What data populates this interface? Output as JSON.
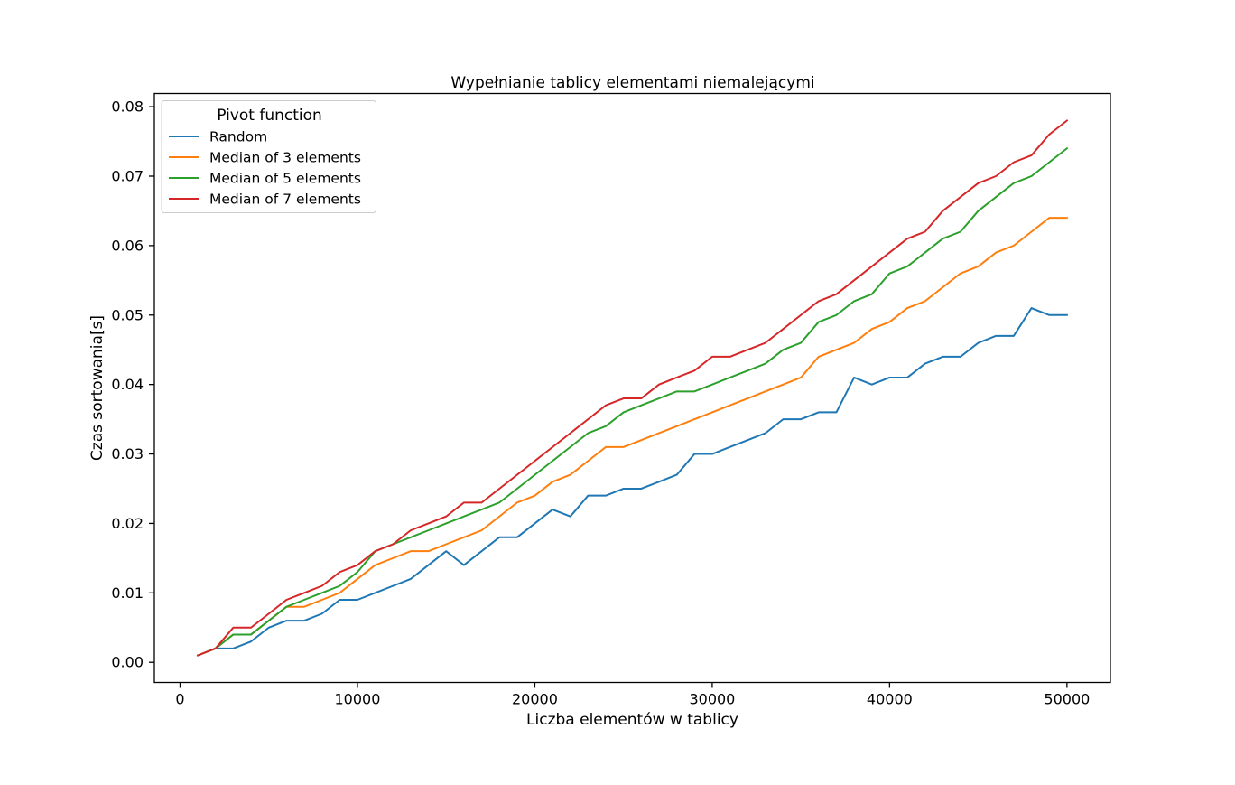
{
  "chart_data": {
    "type": "line",
    "title": "Wypełnianie tablicy elementami niemalejącymi",
    "xlabel": "Liczba elementów w tablicy",
    "ylabel": "Czas sortowania[s]",
    "xlim": [
      -1450,
      52450
    ],
    "ylim": [
      -0.0029,
      0.0819
    ],
    "xticks": [
      0,
      10000,
      20000,
      30000,
      40000,
      50000
    ],
    "xtick_labels": [
      "0",
      "10000",
      "20000",
      "30000",
      "40000",
      "50000"
    ],
    "yticks": [
      0.0,
      0.01,
      0.02,
      0.03,
      0.04,
      0.05,
      0.06,
      0.07,
      0.08
    ],
    "ytick_labels": [
      "0.00",
      "0.01",
      "0.02",
      "0.03",
      "0.04",
      "0.05",
      "0.06",
      "0.07",
      "0.08"
    ],
    "grid": false,
    "legend_title": "Pivot function",
    "legend_position": "top-left",
    "x": [
      1000,
      2000,
      3000,
      4000,
      5000,
      6000,
      7000,
      8000,
      9000,
      10000,
      11000,
      12000,
      13000,
      14000,
      15000,
      16000,
      17000,
      18000,
      19000,
      20000,
      21000,
      22000,
      23000,
      24000,
      25000,
      26000,
      27000,
      28000,
      29000,
      30000,
      31000,
      32000,
      33000,
      34000,
      35000,
      36000,
      37000,
      38000,
      39000,
      40000,
      41000,
      42000,
      43000,
      44000,
      45000,
      46000,
      47000,
      48000,
      49000,
      50000
    ],
    "series": [
      {
        "name": "Random",
        "color": "#1f77b4",
        "values": [
          0.001,
          0.002,
          0.002,
          0.003,
          0.005,
          0.006,
          0.006,
          0.007,
          0.009,
          0.009,
          0.01,
          0.011,
          0.012,
          0.014,
          0.016,
          0.014,
          0.016,
          0.018,
          0.018,
          0.02,
          0.022,
          0.021,
          0.024,
          0.024,
          0.025,
          0.025,
          0.026,
          0.027,
          0.03,
          0.03,
          0.031,
          0.032,
          0.033,
          0.035,
          0.035,
          0.036,
          0.036,
          0.041,
          0.04,
          0.041,
          0.041,
          0.043,
          0.044,
          0.044,
          0.046,
          0.047,
          0.047,
          0.051,
          0.05,
          0.05
        ]
      },
      {
        "name": "Median of 3 elements",
        "color": "#ff7f0e",
        "values": [
          0.001,
          0.002,
          0.004,
          0.004,
          0.006,
          0.008,
          0.008,
          0.009,
          0.01,
          0.012,
          0.014,
          0.015,
          0.016,
          0.016,
          0.017,
          0.018,
          0.019,
          0.021,
          0.023,
          0.024,
          0.026,
          0.027,
          0.029,
          0.031,
          0.031,
          0.032,
          0.033,
          0.034,
          0.035,
          0.036,
          0.037,
          0.038,
          0.039,
          0.04,
          0.041,
          0.044,
          0.045,
          0.046,
          0.048,
          0.049,
          0.051,
          0.052,
          0.054,
          0.056,
          0.057,
          0.059,
          0.06,
          0.062,
          0.064,
          0.064
        ]
      },
      {
        "name": "Median of 5 elements",
        "color": "#2ca02c",
        "values": [
          0.001,
          0.002,
          0.004,
          0.004,
          0.006,
          0.008,
          0.009,
          0.01,
          0.011,
          0.013,
          0.016,
          0.017,
          0.018,
          0.019,
          0.02,
          0.021,
          0.022,
          0.023,
          0.025,
          0.027,
          0.029,
          0.031,
          0.033,
          0.034,
          0.036,
          0.037,
          0.038,
          0.039,
          0.039,
          0.04,
          0.041,
          0.042,
          0.043,
          0.045,
          0.046,
          0.049,
          0.05,
          0.052,
          0.053,
          0.056,
          0.057,
          0.059,
          0.061,
          0.062,
          0.065,
          0.067,
          0.069,
          0.07,
          0.072,
          0.074
        ]
      },
      {
        "name": "Median of 7 elements",
        "color": "#d62728",
        "values": [
          0.001,
          0.002,
          0.005,
          0.005,
          0.007,
          0.009,
          0.01,
          0.011,
          0.013,
          0.014,
          0.016,
          0.017,
          0.019,
          0.02,
          0.021,
          0.023,
          0.023,
          0.025,
          0.027,
          0.029,
          0.031,
          0.033,
          0.035,
          0.037,
          0.038,
          0.038,
          0.04,
          0.041,
          0.042,
          0.044,
          0.044,
          0.045,
          0.046,
          0.048,
          0.05,
          0.052,
          0.053,
          0.055,
          0.057,
          0.059,
          0.061,
          0.062,
          0.065,
          0.067,
          0.069,
          0.07,
          0.072,
          0.073,
          0.076,
          0.078
        ]
      }
    ]
  }
}
